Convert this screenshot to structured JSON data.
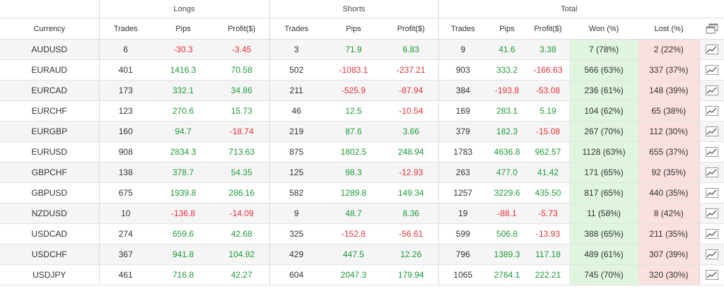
{
  "groups": {
    "longs": "Longs",
    "shorts": "Shorts",
    "total": "Total"
  },
  "columns": {
    "currency": "Currency",
    "trades": "Trades",
    "pips": "Pips",
    "profit": "Profit($)",
    "won": "Won (%)",
    "lost": "Lost (%)"
  },
  "icons": {
    "header": "windows-stack-icon",
    "row": "line-chart-icon"
  },
  "colors": {
    "positive": "#1e9a3a",
    "negative": "#e0303a",
    "won_bg": "#dff5df",
    "lost_bg": "#fbe0e0"
  },
  "rows": [
    {
      "currency": "AUDUSD",
      "l_trades": "6",
      "l_pips": "-30.3",
      "l_profit": "-3.45",
      "s_trades": "3",
      "s_pips": "71.9",
      "s_profit": "6.83",
      "t_trades": "9",
      "t_pips": "41.6",
      "t_profit": "3.38",
      "won": "7 (78%)",
      "lost": "2 (22%)"
    },
    {
      "currency": "EURAUD",
      "l_trades": "401",
      "l_pips": "1416.3",
      "l_profit": "70.58",
      "s_trades": "502",
      "s_pips": "-1083.1",
      "s_profit": "-237.21",
      "t_trades": "903",
      "t_pips": "333.2",
      "t_profit": "-166.63",
      "won": "566 (63%)",
      "lost": "337 (37%)"
    },
    {
      "currency": "EURCAD",
      "l_trades": "173",
      "l_pips": "332.1",
      "l_profit": "34.86",
      "s_trades": "211",
      "s_pips": "-525.9",
      "s_profit": "-87.94",
      "t_trades": "384",
      "t_pips": "-193.8",
      "t_profit": "-53.08",
      "won": "236 (61%)",
      "lost": "148 (39%)"
    },
    {
      "currency": "EURCHF",
      "l_trades": "123",
      "l_pips": "270.6",
      "l_profit": "15.73",
      "s_trades": "46",
      "s_pips": "12.5",
      "s_profit": "-10.54",
      "t_trades": "169",
      "t_pips": "283.1",
      "t_profit": "5.19",
      "won": "104 (62%)",
      "lost": "65 (38%)"
    },
    {
      "currency": "EURGBP",
      "l_trades": "160",
      "l_pips": "94.7",
      "l_profit": "-18.74",
      "s_trades": "219",
      "s_pips": "87.6",
      "s_profit": "3.66",
      "t_trades": "379",
      "t_pips": "182.3",
      "t_profit": "-15.08",
      "won": "267 (70%)",
      "lost": "112 (30%)"
    },
    {
      "currency": "EURUSD",
      "l_trades": "908",
      "l_pips": "2834.3",
      "l_profit": "713.63",
      "s_trades": "875",
      "s_pips": "1802.5",
      "s_profit": "248.94",
      "t_trades": "1783",
      "t_pips": "4636.8",
      "t_profit": "962.57",
      "won": "1128 (63%)",
      "lost": "655 (37%)"
    },
    {
      "currency": "GBPCHF",
      "l_trades": "138",
      "l_pips": "378.7",
      "l_profit": "54.35",
      "s_trades": "125",
      "s_pips": "98.3",
      "s_profit": "-12.93",
      "t_trades": "263",
      "t_pips": "477.0",
      "t_profit": "41.42",
      "won": "171 (65%)",
      "lost": "92 (35%)"
    },
    {
      "currency": "GBPUSD",
      "l_trades": "675",
      "l_pips": "1939.8",
      "l_profit": "286.16",
      "s_trades": "582",
      "s_pips": "1289.8",
      "s_profit": "149.34",
      "t_trades": "1257",
      "t_pips": "3229.6",
      "t_profit": "435.50",
      "won": "817 (65%)",
      "lost": "440 (35%)"
    },
    {
      "currency": "NZDUSD",
      "l_trades": "10",
      "l_pips": "-136.8",
      "l_profit": "-14.09",
      "s_trades": "9",
      "s_pips": "48.7",
      "s_profit": "8.36",
      "t_trades": "19",
      "t_pips": "-88.1",
      "t_profit": "-5.73",
      "won": "11 (58%)",
      "lost": "8 (42%)"
    },
    {
      "currency": "USDCAD",
      "l_trades": "274",
      "l_pips": "659.6",
      "l_profit": "42.68",
      "s_trades": "325",
      "s_pips": "-152.8",
      "s_profit": "-56.61",
      "t_trades": "599",
      "t_pips": "506.8",
      "t_profit": "-13.93",
      "won": "388 (65%)",
      "lost": "211 (35%)"
    },
    {
      "currency": "USDCHF",
      "l_trades": "367",
      "l_pips": "941.8",
      "l_profit": "104.92",
      "s_trades": "429",
      "s_pips": "447.5",
      "s_profit": "12.26",
      "t_trades": "796",
      "t_pips": "1389.3",
      "t_profit": "117.18",
      "won": "489 (61%)",
      "lost": "307 (39%)"
    },
    {
      "currency": "USDJPY",
      "l_trades": "461",
      "l_pips": "716.8",
      "l_profit": "42.27",
      "s_trades": "604",
      "s_pips": "2047.3",
      "s_profit": "179.94",
      "t_trades": "1065",
      "t_pips": "2764.1",
      "t_profit": "222.21",
      "won": "745 (70%)",
      "lost": "320 (30%)"
    }
  ]
}
